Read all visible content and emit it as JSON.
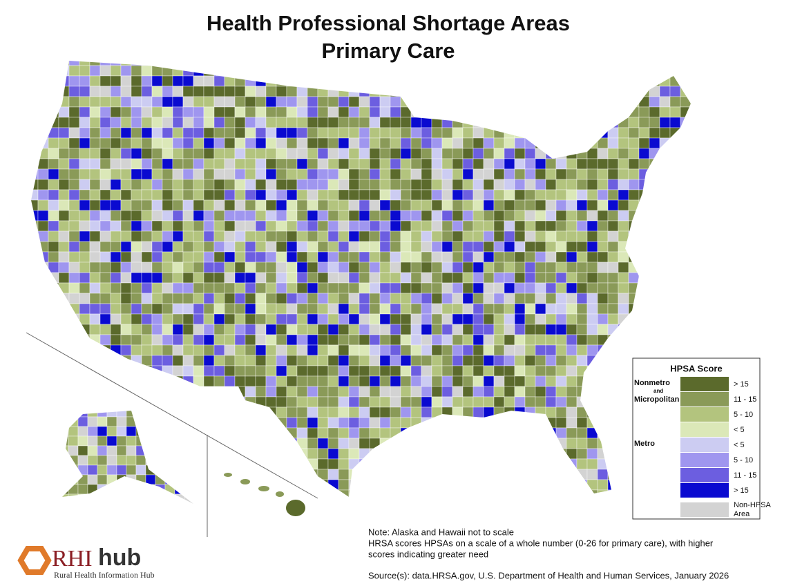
{
  "title": {
    "line1": "Health Professional Shortage Areas",
    "line2": "Primary Care"
  },
  "legend": {
    "title": "HPSA Score",
    "groups": [
      {
        "label": [
          "Nonmetro",
          "and",
          "Micropolitan"
        ],
        "items": [
          {
            "label": "> 15",
            "color": "#5b6a2c"
          },
          {
            "label": "11 - 15",
            "color": "#8a9a58"
          },
          {
            "label": "5 - 10",
            "color": "#b3c47e"
          },
          {
            "label": "< 5",
            "color": "#dbe8b8"
          }
        ]
      },
      {
        "label": [
          "Metro"
        ],
        "items": [
          {
            "label": "< 5",
            "color": "#ccccf2"
          },
          {
            "label": "5 - 10",
            "color": "#9f96ef"
          },
          {
            "label": "11 - 15",
            "color": "#6c5ee0"
          },
          {
            "label": "> 15",
            "color": "#0a0ad0"
          }
        ]
      }
    ],
    "other": {
      "label": [
        "Non-HPSA",
        "Area"
      ],
      "color": "#d3d3d3"
    }
  },
  "notes": [
    "Note: Alaska and Hawaii not to scale",
    "HRSA scores HPSAs on a scale of a whole number (0-26 for primary care), with higher",
    "scores indicating greater need"
  ],
  "source": "Source(s): data.HRSA.gov, U.S. Department of Health and Human Services, January 2026",
  "logo": {
    "part1": "RHI",
    "part2": "hub",
    "tagline": "Rural Health Information Hub"
  }
}
